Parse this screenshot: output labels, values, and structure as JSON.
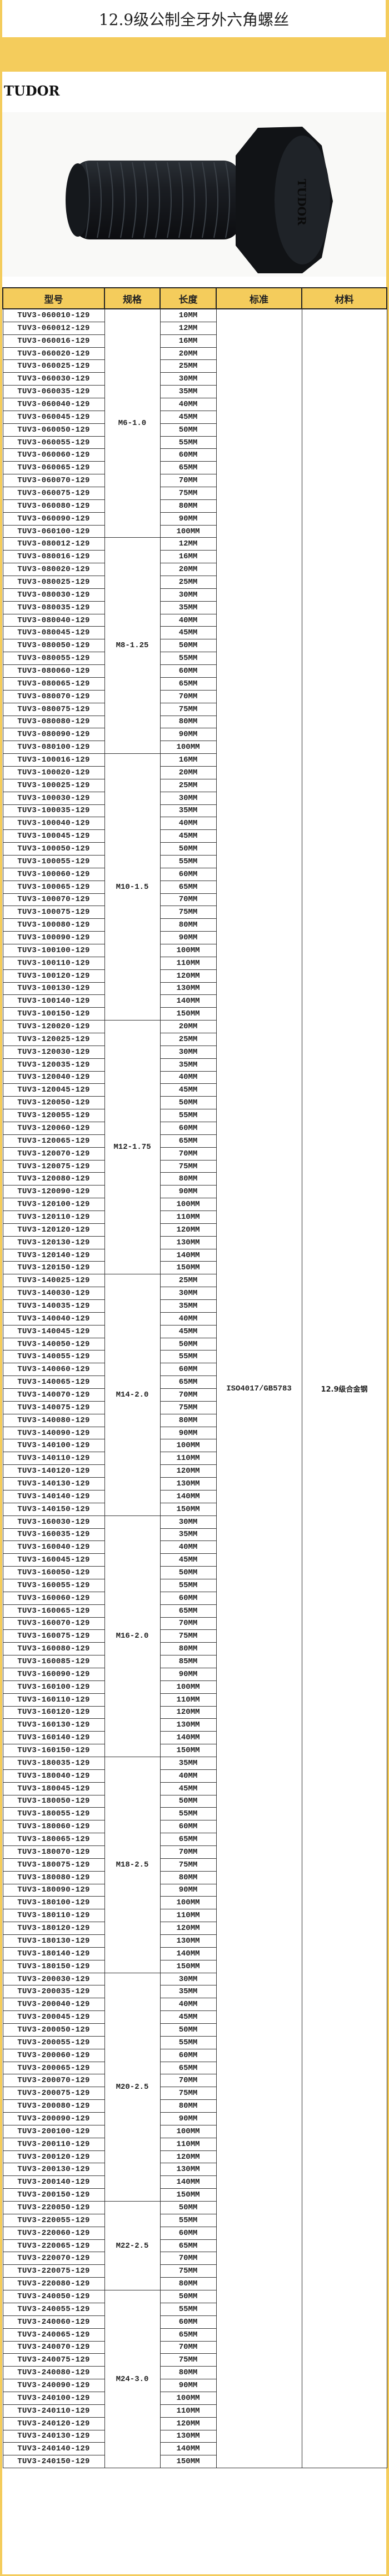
{
  "title": "12.9级公制全牙外六角螺丝",
  "brand": "TUDOR",
  "product_image": {
    "head_marking": "TUDOR"
  },
  "colors": {
    "page_background": "#f4cc5c",
    "header_background": "#f4cc5c"
  },
  "table": {
    "headers": [
      "型号",
      "规格",
      "长度",
      "标准",
      "材料"
    ],
    "standard": "ISO4017/GB5783",
    "material": "12.9级合金钢",
    "groups": [
      {
        "spec": "M6-1.0",
        "rows": [
          [
            "TUV3-060010-129",
            "10MM"
          ],
          [
            "TUV3-060012-129",
            "12MM"
          ],
          [
            "TUV3-060016-129",
            "16MM"
          ],
          [
            "TUV3-060020-129",
            "20MM"
          ],
          [
            "TUV3-060025-129",
            "25MM"
          ],
          [
            "TUV3-060030-129",
            "30MM"
          ],
          [
            "TUV3-060035-129",
            "35MM"
          ],
          [
            "TUV3-060040-129",
            "40MM"
          ],
          [
            "TUV3-060045-129",
            "45MM"
          ],
          [
            "TUV3-060050-129",
            "50MM"
          ],
          [
            "TUV3-060055-129",
            "55MM"
          ],
          [
            "TUV3-060060-129",
            "60MM"
          ],
          [
            "TUV3-060065-129",
            "65MM"
          ],
          [
            "TUV3-060070-129",
            "70MM"
          ],
          [
            "TUV3-060075-129",
            "75MM"
          ],
          [
            "TUV3-060080-129",
            "80MM"
          ],
          [
            "TUV3-060090-129",
            "90MM"
          ],
          [
            "TUV3-060100-129",
            "100MM"
          ]
        ]
      },
      {
        "spec": "M8-1.25",
        "rows": [
          [
            "TUV3-080012-129",
            "12MM"
          ],
          [
            "TUV3-080016-129",
            "16MM"
          ],
          [
            "TUV3-080020-129",
            "20MM"
          ],
          [
            "TUV3-080025-129",
            "25MM"
          ],
          [
            "TUV3-080030-129",
            "30MM"
          ],
          [
            "TUV3-080035-129",
            "35MM"
          ],
          [
            "TUV3-080040-129",
            "40MM"
          ],
          [
            "TUV3-080045-129",
            "45MM"
          ],
          [
            "TUV3-080050-129",
            "50MM"
          ],
          [
            "TUV3-080055-129",
            "55MM"
          ],
          [
            "TUV3-080060-129",
            "60MM"
          ],
          [
            "TUV3-080065-129",
            "65MM"
          ],
          [
            "TUV3-080070-129",
            "70MM"
          ],
          [
            "TUV3-080075-129",
            "75MM"
          ],
          [
            "TUV3-080080-129",
            "80MM"
          ],
          [
            "TUV3-080090-129",
            "90MM"
          ],
          [
            "TUV3-080100-129",
            "100MM"
          ]
        ]
      },
      {
        "spec": "M10-1.5",
        "rows": [
          [
            "TUV3-100016-129",
            "16MM"
          ],
          [
            "TUV3-100020-129",
            "20MM"
          ],
          [
            "TUV3-100025-129",
            "25MM"
          ],
          [
            "TUV3-100030-129",
            "30MM"
          ],
          [
            "TUV3-100035-129",
            "35MM"
          ],
          [
            "TUV3-100040-129",
            "40MM"
          ],
          [
            "TUV3-100045-129",
            "45MM"
          ],
          [
            "TUV3-100050-129",
            "50MM"
          ],
          [
            "TUV3-100055-129",
            "55MM"
          ],
          [
            "TUV3-100060-129",
            "60MM"
          ],
          [
            "TUV3-100065-129",
            "65MM"
          ],
          [
            "TUV3-100070-129",
            "70MM"
          ],
          [
            "TUV3-100075-129",
            "75MM"
          ],
          [
            "TUV3-100080-129",
            "80MM"
          ],
          [
            "TUV3-100090-129",
            "90MM"
          ],
          [
            "TUV3-100100-129",
            "100MM"
          ],
          [
            "TUV3-100110-129",
            "110MM"
          ],
          [
            "TUV3-100120-129",
            "120MM"
          ],
          [
            "TUV3-100130-129",
            "130MM"
          ],
          [
            "TUV3-100140-129",
            "140MM"
          ],
          [
            "TUV3-100150-129",
            "150MM"
          ]
        ]
      },
      {
        "spec": "M12-1.75",
        "rows": [
          [
            "TUV3-120020-129",
            "20MM"
          ],
          [
            "TUV3-120025-129",
            "25MM"
          ],
          [
            "TUV3-120030-129",
            "30MM"
          ],
          [
            "TUV3-120035-129",
            "35MM"
          ],
          [
            "TUV3-120040-129",
            "40MM"
          ],
          [
            "TUV3-120045-129",
            "45MM"
          ],
          [
            "TUV3-120050-129",
            "50MM"
          ],
          [
            "TUV3-120055-129",
            "55MM"
          ],
          [
            "TUV3-120060-129",
            "60MM"
          ],
          [
            "TUV3-120065-129",
            "65MM"
          ],
          [
            "TUV3-120070-129",
            "70MM"
          ],
          [
            "TUV3-120075-129",
            "75MM"
          ],
          [
            "TUV3-120080-129",
            "80MM"
          ],
          [
            "TUV3-120090-129",
            "90MM"
          ],
          [
            "TUV3-120100-129",
            "100MM"
          ],
          [
            "TUV3-120110-129",
            "110MM"
          ],
          [
            "TUV3-120120-129",
            "120MM"
          ],
          [
            "TUV3-120130-129",
            "130MM"
          ],
          [
            "TUV3-120140-129",
            "140MM"
          ],
          [
            "TUV3-120150-129",
            "150MM"
          ]
        ]
      },
      {
        "spec": "M14-2.0",
        "rows": [
          [
            "TUV3-140025-129",
            "25MM"
          ],
          [
            "TUV3-140030-129",
            "30MM"
          ],
          [
            "TUV3-140035-129",
            "35MM"
          ],
          [
            "TUV3-140040-129",
            "40MM"
          ],
          [
            "TUV3-140045-129",
            "45MM"
          ],
          [
            "TUV3-140050-129",
            "50MM"
          ],
          [
            "TUV3-140055-129",
            "55MM"
          ],
          [
            "TUV3-140060-129",
            "60MM"
          ],
          [
            "TUV3-140065-129",
            "65MM"
          ],
          [
            "TUV3-140070-129",
            "70MM"
          ],
          [
            "TUV3-140075-129",
            "75MM"
          ],
          [
            "TUV3-140080-129",
            "80MM"
          ],
          [
            "TUV3-140090-129",
            "90MM"
          ],
          [
            "TUV3-140100-129",
            "100MM"
          ],
          [
            "TUV3-140110-129",
            "110MM"
          ],
          [
            "TUV3-140120-129",
            "120MM"
          ],
          [
            "TUV3-140130-129",
            "130MM"
          ],
          [
            "TUV3-140140-129",
            "140MM"
          ],
          [
            "TUV3-140150-129",
            "150MM"
          ]
        ]
      },
      {
        "spec": "M16-2.0",
        "rows": [
          [
            "TUV3-160030-129",
            "30MM"
          ],
          [
            "TUV3-160035-129",
            "35MM"
          ],
          [
            "TUV3-160040-129",
            "40MM"
          ],
          [
            "TUV3-160045-129",
            "45MM"
          ],
          [
            "TUV3-160050-129",
            "50MM"
          ],
          [
            "TUV3-160055-129",
            "55MM"
          ],
          [
            "TUV3-160060-129",
            "60MM"
          ],
          [
            "TUV3-160065-129",
            "65MM"
          ],
          [
            "TUV3-160070-129",
            "70MM"
          ],
          [
            "TUV3-160075-129",
            "75MM"
          ],
          [
            "TUV3-160080-129",
            "80MM"
          ],
          [
            "TUV3-160085-129",
            "85MM"
          ],
          [
            "TUV3-160090-129",
            "90MM"
          ],
          [
            "TUV3-160100-129",
            "100MM"
          ],
          [
            "TUV3-160110-129",
            "110MM"
          ],
          [
            "TUV3-160120-129",
            "120MM"
          ],
          [
            "TUV3-160130-129",
            "130MM"
          ],
          [
            "TUV3-160140-129",
            "140MM"
          ],
          [
            "TUV3-160150-129",
            "150MM"
          ]
        ]
      },
      {
        "spec": "M18-2.5",
        "rows": [
          [
            "TUV3-180035-129",
            "35MM"
          ],
          [
            "TUV3-180040-129",
            "40MM"
          ],
          [
            "TUV3-180045-129",
            "45MM"
          ],
          [
            "TUV3-180050-129",
            "50MM"
          ],
          [
            "TUV3-180055-129",
            "55MM"
          ],
          [
            "TUV3-180060-129",
            "60MM"
          ],
          [
            "TUV3-180065-129",
            "65MM"
          ],
          [
            "TUV3-180070-129",
            "70MM"
          ],
          [
            "TUV3-180075-129",
            "75MM"
          ],
          [
            "TUV3-180080-129",
            "80MM"
          ],
          [
            "TUV3-180090-129",
            "90MM"
          ],
          [
            "TUV3-180100-129",
            "100MM"
          ],
          [
            "TUV3-180110-129",
            "110MM"
          ],
          [
            "TUV3-180120-129",
            "120MM"
          ],
          [
            "TUV3-180130-129",
            "130MM"
          ],
          [
            "TUV3-180140-129",
            "140MM"
          ],
          [
            "TUV3-180150-129",
            "150MM"
          ]
        ]
      },
      {
        "spec": "M20-2.5",
        "rows": [
          [
            "TUV3-200030-129",
            "30MM"
          ],
          [
            "TUV3-200035-129",
            "35MM"
          ],
          [
            "TUV3-200040-129",
            "40MM"
          ],
          [
            "TUV3-200045-129",
            "45MM"
          ],
          [
            "TUV3-200050-129",
            "50MM"
          ],
          [
            "TUV3-200055-129",
            "55MM"
          ],
          [
            "TUV3-200060-129",
            "60MM"
          ],
          [
            "TUV3-200065-129",
            "65MM"
          ],
          [
            "TUV3-200070-129",
            "70MM"
          ],
          [
            "TUV3-200075-129",
            "75MM"
          ],
          [
            "TUV3-200080-129",
            "80MM"
          ],
          [
            "TUV3-200090-129",
            "90MM"
          ],
          [
            "TUV3-200100-129",
            "100MM"
          ],
          [
            "TUV3-200110-129",
            "110MM"
          ],
          [
            "TUV3-200120-129",
            "120MM"
          ],
          [
            "TUV3-200130-129",
            "130MM"
          ],
          [
            "TUV3-200140-129",
            "140MM"
          ],
          [
            "TUV3-200150-129",
            "150MM"
          ]
        ]
      },
      {
        "spec": "M22-2.5",
        "rows": [
          [
            "TUV3-220050-129",
            "50MM"
          ],
          [
            "TUV3-220055-129",
            "55MM"
          ],
          [
            "TUV3-220060-129",
            "60MM"
          ],
          [
            "TUV3-220065-129",
            "65MM"
          ],
          [
            "TUV3-220070-129",
            "70MM"
          ],
          [
            "TUV3-220075-129",
            "75MM"
          ],
          [
            "TUV3-220080-129",
            "80MM"
          ]
        ]
      },
      {
        "spec": "M24-3.0",
        "rows": [
          [
            "TUV3-240050-129",
            "50MM"
          ],
          [
            "TUV3-240055-129",
            "55MM"
          ],
          [
            "TUV3-240060-129",
            "60MM"
          ],
          [
            "TUV3-240065-129",
            "65MM"
          ],
          [
            "TUV3-240070-129",
            "70MM"
          ],
          [
            "TUV3-240075-129",
            "75MM"
          ],
          [
            "TUV3-240080-129",
            "80MM"
          ],
          [
            "TUV3-240090-129",
            "90MM"
          ],
          [
            "TUV3-240100-129",
            "100MM"
          ],
          [
            "TUV3-240110-129",
            "110MM"
          ],
          [
            "TUV3-240120-129",
            "120MM"
          ],
          [
            "TUV3-240130-129",
            "130MM"
          ],
          [
            "TUV3-240140-129",
            "140MM"
          ],
          [
            "TUV3-240150-129",
            "150MM"
          ]
        ]
      }
    ]
  }
}
